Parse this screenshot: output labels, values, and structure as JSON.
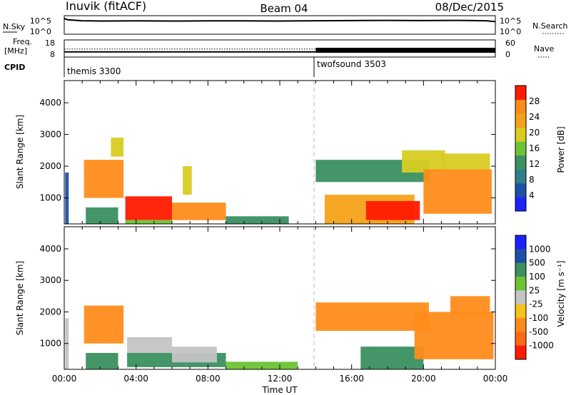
{
  "header": {
    "station": "Inuvik (fitACF)",
    "beam": "Beam 04",
    "date": "08/Dec/2015"
  },
  "strips": {
    "nsky_label": "N.Sky",
    "nsky_ticks": [
      "10^5",
      "10^0"
    ],
    "nsearch_label": "N.Search",
    "freq_label_1": "Freq.",
    "freq_label_2": "[MHz]",
    "freq_ticks": [
      "18",
      "8"
    ],
    "nave_ticks": [
      "60",
      "0"
    ],
    "nave_label": "Nave",
    "cpid_label": "CPID",
    "cpid_1": "themis 3300",
    "cpid_2": "twofsound 3503"
  },
  "panels": {
    "ylabel": "Slant Range [km]",
    "xlabel": "Time UT",
    "power_cbar_title": "Power [dB]",
    "velocity_cbar_title": "Velocity [m s⁻¹]"
  },
  "colors": {
    "red": "#ff1a00",
    "orange": "#ff8c1a",
    "yellow": "#f5c21a",
    "green": "#6cc434",
    "teal": "#3a9060",
    "blue": "#1e4fa8",
    "gray": "#c4c4c4"
  },
  "chart_data": [
    {
      "type": "line",
      "title": "N.Sky / N.Search",
      "x_range_hours": [
        0,
        24
      ],
      "ylim_labels": [
        "10^0",
        "10^5"
      ],
      "x": [
        0,
        0.2,
        1,
        2,
        4,
        6,
        8,
        10,
        12,
        14,
        16,
        18,
        20,
        22,
        23.5,
        24
      ],
      "values": [
        5.0,
        4.6,
        4.3,
        4.2,
        4.25,
        4.2,
        4.25,
        4.25,
        4.2,
        4.3,
        4.35,
        4.4,
        4.35,
        4.4,
        4.3,
        4.0
      ]
    },
    {
      "type": "line",
      "title": "Freq. / Nave",
      "freq_mhz_range": [
        8,
        18
      ],
      "nave_range": [
        0,
        60
      ],
      "freq_segments": [
        {
          "x0": 0,
          "x1": 14,
          "value": 11
        },
        {
          "x0": 14,
          "x1": 24,
          "value": 11
        }
      ],
      "nave_segments": [
        {
          "x0": 0,
          "x1": 14,
          "value": 18
        },
        {
          "x0": 14,
          "x1": 24,
          "value": 20
        }
      ]
    },
    {
      "type": "table",
      "title": "CPID",
      "segments": [
        {
          "start_hour": 0,
          "label": "themis 3300"
        },
        {
          "start_hour": 14,
          "label": "twofsound 3503"
        }
      ]
    },
    {
      "type": "heatmap",
      "title": "Power [dB]",
      "xlabel": "Time UT",
      "ylabel": "Slant Range [km]",
      "x_range_hours": [
        0,
        24
      ],
      "ylim": [
        180,
        4700
      ],
      "x_ticks": [
        "00:00",
        "04:00",
        "08:00",
        "12:00",
        "16:00",
        "20:00",
        "00:00"
      ],
      "y_ticks": [
        1000,
        2000,
        3000,
        4000
      ],
      "colorbar_ticks": [
        4,
        8,
        12,
        16,
        20,
        24,
        28
      ],
      "colorbar_range": [
        0,
        32
      ],
      "colorbar_colors": [
        "#1a22ff",
        "#1e4fa8",
        "#2f7f8a",
        "#3a9060",
        "#6cc434",
        "#d8cc22",
        "#f5a21a",
        "#ff8c1a",
        "#ff1a00"
      ],
      "patches": [
        {
          "t0": 0.05,
          "t1": 0.25,
          "r0": 180,
          "r1": 1800,
          "value": 4
        },
        {
          "t0": 1.1,
          "t1": 3.3,
          "r0": 1000,
          "r1": 2200,
          "value": 26
        },
        {
          "t0": 1.2,
          "t1": 3.0,
          "r0": 180,
          "r1": 700,
          "value": 12
        },
        {
          "t0": 2.6,
          "t1": 3.3,
          "r0": 2300,
          "r1": 2900,
          "value": 20
        },
        {
          "t0": 3.4,
          "t1": 6.0,
          "r0": 300,
          "r1": 1050,
          "value": 29
        },
        {
          "t0": 3.4,
          "t1": 6.0,
          "r0": 180,
          "r1": 300,
          "value": 16
        },
        {
          "t0": 6.0,
          "t1": 9.0,
          "r0": 300,
          "r1": 850,
          "value": 28
        },
        {
          "t0": 6.6,
          "t1": 7.1,
          "r0": 1100,
          "r1": 2000,
          "value": 20
        },
        {
          "t0": 9.0,
          "t1": 12.5,
          "r0": 180,
          "r1": 420,
          "value": 12
        },
        {
          "t0": 14.0,
          "t1": 20.3,
          "r0": 1500,
          "r1": 2200,
          "value": 14
        },
        {
          "t0": 14.5,
          "t1": 19.5,
          "r0": 180,
          "r1": 1100,
          "value": 22
        },
        {
          "t0": 16.8,
          "t1": 19.8,
          "r0": 300,
          "r1": 900,
          "value": 29
        },
        {
          "t0": 18.8,
          "t1": 21.2,
          "r0": 1800,
          "r1": 2500,
          "value": 18
        },
        {
          "t0": 20.0,
          "t1": 23.8,
          "r0": 500,
          "r1": 1900,
          "value": 28
        },
        {
          "t0": 21.0,
          "t1": 23.7,
          "r0": 1900,
          "r1": 2400,
          "value": 20
        }
      ]
    },
    {
      "type": "heatmap",
      "title": "Velocity [m s⁻¹]",
      "xlabel": "Time UT",
      "ylabel": "Slant Range [km]",
      "x_range_hours": [
        0,
        24
      ],
      "ylim": [
        180,
        4700
      ],
      "x_ticks": [
        "00:00",
        "04:00",
        "08:00",
        "12:00",
        "16:00",
        "20:00",
        "00:00"
      ],
      "y_ticks": [
        1000,
        2000,
        3000,
        4000
      ],
      "colorbar_labels": [
        "1000",
        "500",
        "100",
        "25",
        "-25",
        "-100",
        "-500",
        "-1000"
      ],
      "colorbar_colors": [
        "#1a22ff",
        "#1e4fa8",
        "#3a9060",
        "#6cc434",
        "#c4c4c4",
        "#f5c21a",
        "#ff8c1a",
        "#ff6a10",
        "#ff1a00"
      ],
      "patches": [
        {
          "t0": 0.05,
          "t1": 0.25,
          "r0": 180,
          "r1": 1800,
          "value": -25
        },
        {
          "t0": 1.1,
          "t1": 3.3,
          "r0": 1000,
          "r1": 2200,
          "value": -300
        },
        {
          "t0": 1.2,
          "t1": 3.0,
          "r0": 180,
          "r1": 700,
          "value": 100
        },
        {
          "t0": 3.5,
          "t1": 6.0,
          "r0": 700,
          "r1": 1200,
          "value": 0
        },
        {
          "t0": 3.5,
          "t1": 9.0,
          "r0": 250,
          "r1": 700,
          "value": 100
        },
        {
          "t0": 6.0,
          "t1": 8.5,
          "r0": 400,
          "r1": 900,
          "value": 0
        },
        {
          "t0": 9.0,
          "t1": 13.0,
          "r0": 180,
          "r1": 420,
          "value": 80
        },
        {
          "t0": 14.0,
          "t1": 20.3,
          "r0": 1400,
          "r1": 2300,
          "value": -300
        },
        {
          "t0": 16.5,
          "t1": 20.0,
          "r0": 180,
          "r1": 900,
          "value": 100
        },
        {
          "t0": 19.5,
          "t1": 23.9,
          "r0": 500,
          "r1": 2000,
          "value": -400
        },
        {
          "t0": 21.5,
          "t1": 23.7,
          "r0": 1900,
          "r1": 2500,
          "value": -150
        }
      ]
    }
  ]
}
